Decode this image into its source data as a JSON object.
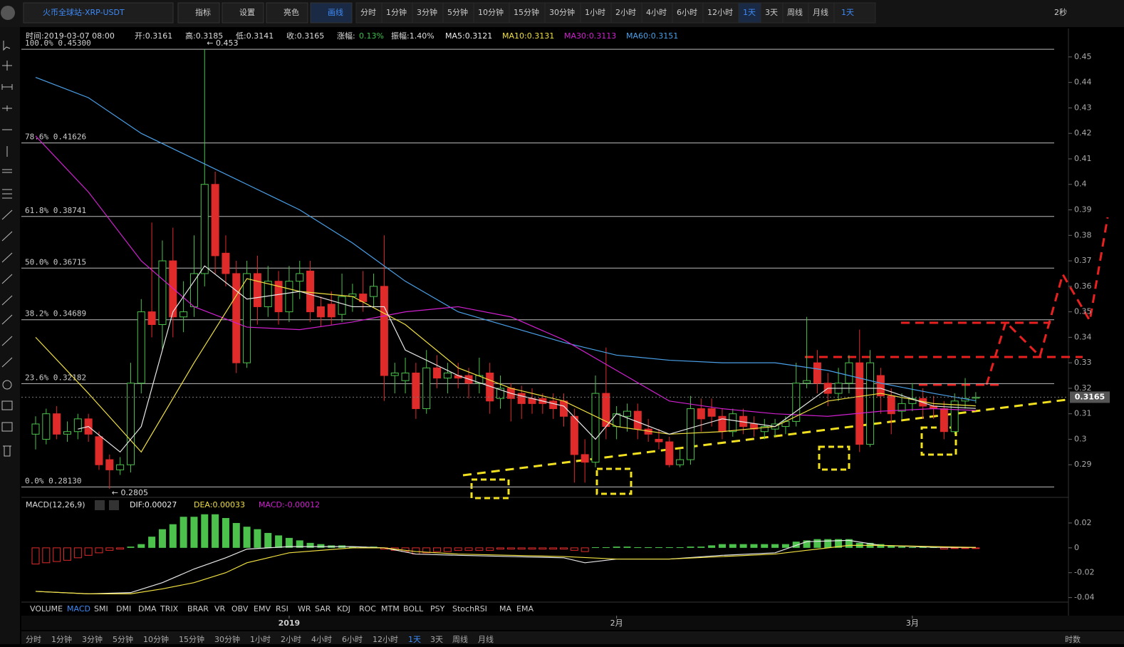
{
  "toolbar": {
    "symbol": "火币全球站-XRP-USDT",
    "buttons": [
      "指标",
      "设置",
      "亮色",
      "画线"
    ],
    "periods": [
      "分时",
      "1分钟",
      "3分钟",
      "5分钟",
      "10分钟",
      "15分钟",
      "30分钟",
      "1小时",
      "2小时",
      "4小时",
      "6小时",
      "12小时",
      "1天",
      "3天",
      "周线",
      "月线"
    ],
    "active_period": "1天",
    "dropdown": "1天",
    "refresh": "2秒"
  },
  "info_bar": [
    {
      "text": "时间:2019-03-07 08:00",
      "color": "#dddddd"
    },
    {
      "text": "开:0.3161",
      "color": "#dddddd"
    },
    {
      "text": "高:0.3185",
      "color": "#dddddd"
    },
    {
      "text": "低:0.3141",
      "color": "#dddddd"
    },
    {
      "text": "收:0.3165",
      "color": "#dddddd"
    },
    {
      "text": "涨幅:",
      "color": "#dddddd"
    },
    {
      "text": "0.13%",
      "color": "#3cc14a"
    },
    {
      "text": "振幅:1.40%",
      "color": "#dddddd"
    },
    {
      "text": "MA5:0.3121",
      "color": "#eeeeee"
    },
    {
      "text": "MA10:0.3131",
      "color": "#f0e040"
    },
    {
      "text": "MA30:0.3113",
      "color": "#d020d0"
    },
    {
      "text": "MA60:0.3151",
      "color": "#4aa0e8"
    }
  ],
  "chart_data": {
    "type": "candlestick",
    "categories": [
      null,
      null,
      null,
      null,
      null,
      null,
      null,
      null,
      null,
      null,
      null,
      null,
      null,
      null,
      null,
      null,
      null,
      null,
      null,
      null,
      null,
      null,
      null,
      null,
      "2019",
      null,
      null,
      null,
      null,
      null,
      null,
      null,
      null,
      null,
      null,
      null,
      null,
      null,
      null,
      null,
      null,
      null,
      null,
      null,
      null,
      null,
      null,
      null,
      null,
      null,
      null,
      null,
      null,
      null,
      null,
      "2月",
      null,
      null,
      null,
      null,
      null,
      null,
      null,
      null,
      null,
      null,
      null,
      null,
      null,
      null,
      null,
      null,
      null,
      null,
      null,
      null,
      null,
      null,
      null,
      null,
      null,
      null,
      null,
      "3月",
      null,
      null,
      null,
      null,
      null,
      null
    ],
    "candles": [
      [
        0.302,
        0.309,
        0.296,
        0.306
      ],
      [
        0.3,
        0.312,
        0.298,
        0.31
      ],
      [
        0.31,
        0.313,
        0.3,
        0.302
      ],
      [
        0.302,
        0.307,
        0.299,
        0.303
      ],
      [
        0.303,
        0.31,
        0.3,
        0.308
      ],
      [
        0.308,
        0.31,
        0.299,
        0.302
      ],
      [
        0.301,
        0.303,
        0.288,
        0.29
      ],
      [
        0.292,
        0.294,
        0.2805,
        0.288
      ],
      [
        0.288,
        0.293,
        0.286,
        0.29
      ],
      [
        0.29,
        0.33,
        0.287,
        0.322
      ],
      [
        0.322,
        0.355,
        0.318,
        0.35
      ],
      [
        0.35,
        0.385,
        0.34,
        0.345
      ],
      [
        0.345,
        0.378,
        0.335,
        0.37
      ],
      [
        0.37,
        0.383,
        0.34,
        0.348
      ],
      [
        0.348,
        0.362,
        0.342,
        0.35
      ],
      [
        0.352,
        0.38,
        0.348,
        0.365
      ],
      [
        0.365,
        0.453,
        0.36,
        0.4
      ],
      [
        0.4,
        0.405,
        0.365,
        0.372
      ],
      [
        0.373,
        0.38,
        0.36,
        0.365
      ],
      [
        0.365,
        0.37,
        0.326,
        0.33
      ],
      [
        0.33,
        0.37,
        0.328,
        0.365
      ],
      [
        0.365,
        0.372,
        0.345,
        0.352
      ],
      [
        0.352,
        0.368,
        0.348,
        0.362
      ],
      [
        0.362,
        0.366,
        0.345,
        0.35
      ],
      [
        0.35,
        0.368,
        0.346,
        0.362
      ],
      [
        0.362,
        0.37,
        0.355,
        0.365
      ],
      [
        0.366,
        0.37,
        0.346,
        0.35
      ],
      [
        0.352,
        0.356,
        0.344,
        0.348
      ],
      [
        0.353,
        0.358,
        0.345,
        0.348
      ],
      [
        0.349,
        0.365,
        0.346,
        0.356
      ],
      [
        0.356,
        0.361,
        0.35,
        0.357
      ],
      [
        0.357,
        0.366,
        0.35,
        0.354
      ],
      [
        0.356,
        0.365,
        0.352,
        0.36
      ],
      [
        0.36,
        0.38,
        0.315,
        0.325
      ],
      [
        0.325,
        0.33,
        0.318,
        0.326
      ],
      [
        0.323,
        0.332,
        0.318,
        0.326
      ],
      [
        0.326,
        0.33,
        0.308,
        0.312
      ],
      [
        0.312,
        0.335,
        0.31,
        0.328
      ],
      [
        0.328,
        0.333,
        0.32,
        0.324
      ],
      [
        0.324,
        0.33,
        0.318,
        0.326
      ],
      [
        0.325,
        0.33,
        0.32,
        0.324
      ],
      [
        0.325,
        0.328,
        0.316,
        0.322
      ],
      [
        0.322,
        0.332,
        0.318,
        0.325
      ],
      [
        0.326,
        0.33,
        0.31,
        0.315
      ],
      [
        0.316,
        0.325,
        0.312,
        0.32
      ],
      [
        0.32,
        0.322,
        0.307,
        0.316
      ],
      [
        0.318,
        0.321,
        0.308,
        0.314
      ],
      [
        0.316,
        0.32,
        0.31,
        0.314
      ],
      [
        0.316,
        0.318,
        0.31,
        0.314
      ],
      [
        0.315,
        0.318,
        0.308,
        0.312
      ],
      [
        0.315,
        0.318,
        0.305,
        0.309
      ],
      [
        0.309,
        0.312,
        0.283,
        0.294
      ],
      [
        0.294,
        0.3,
        0.283,
        0.291
      ],
      [
        0.291,
        0.325,
        0.289,
        0.318
      ],
      [
        0.318,
        0.336,
        0.3,
        0.305
      ],
      [
        0.305,
        0.313,
        0.3,
        0.31
      ],
      [
        0.309,
        0.314,
        0.303,
        0.311
      ],
      [
        0.311,
        0.314,
        0.3,
        0.304
      ],
      [
        0.304,
        0.308,
        0.299,
        0.302
      ],
      [
        0.3,
        0.304,
        0.296,
        0.299
      ],
      [
        0.299,
        0.301,
        0.289,
        0.29
      ],
      [
        0.29,
        0.296,
        0.289,
        0.292
      ],
      [
        0.292,
        0.317,
        0.29,
        0.312
      ],
      [
        0.312,
        0.316,
        0.303,
        0.308
      ],
      [
        0.312,
        0.316,
        0.305,
        0.309
      ],
      [
        0.309,
        0.312,
        0.3,
        0.303
      ],
      [
        0.303,
        0.312,
        0.301,
        0.31
      ],
      [
        0.309,
        0.312,
        0.302,
        0.305
      ],
      [
        0.306,
        0.309,
        0.301,
        0.304
      ],
      [
        0.303,
        0.308,
        0.3,
        0.305
      ],
      [
        0.304,
        0.308,
        0.301,
        0.306
      ],
      [
        0.305,
        0.309,
        0.302,
        0.307
      ],
      [
        0.307,
        0.33,
        0.305,
        0.322
      ],
      [
        0.322,
        0.348,
        0.32,
        0.323
      ],
      [
        0.33,
        0.335,
        0.318,
        0.322
      ],
      [
        0.322,
        0.326,
        0.313,
        0.318
      ],
      [
        0.318,
        0.328,
        0.315,
        0.322
      ],
      [
        0.322,
        0.333,
        0.318,
        0.33
      ],
      [
        0.33,
        0.343,
        0.295,
        0.298
      ],
      [
        0.298,
        0.335,
        0.297,
        0.33
      ],
      [
        0.325,
        0.328,
        0.31,
        0.317
      ],
      [
        0.317,
        0.32,
        0.302,
        0.31
      ],
      [
        0.311,
        0.318,
        0.308,
        0.314
      ],
      [
        0.314,
        0.322,
        0.311,
        0.316
      ],
      [
        0.316,
        0.32,
        0.308,
        0.313
      ],
      [
        0.313,
        0.317,
        0.308,
        0.312
      ],
      [
        0.312,
        0.315,
        0.3,
        0.303
      ],
      [
        0.303,
        0.318,
        0.302,
        0.315
      ],
      [
        0.315,
        0.324,
        0.312,
        0.316
      ],
      [
        0.3161,
        0.3185,
        0.3141,
        0.3165
      ]
    ],
    "up_color": "#4cc24c",
    "down_color": "#e02b2b",
    "ma_lines": [
      {
        "name": "MA60",
        "color": "#4aa0e8",
        "x": [
          0,
          5,
          10,
          15,
          20,
          25,
          30,
          35,
          40,
          45,
          50,
          55,
          60,
          65,
          70,
          75,
          80,
          85,
          89
        ],
        "values": [
          0.442,
          0.434,
          0.42,
          0.41,
          0.4,
          0.39,
          0.377,
          0.362,
          0.35,
          0.344,
          0.338,
          0.333,
          0.331,
          0.33,
          0.33,
          0.327,
          0.322,
          0.318,
          0.3151
        ]
      },
      {
        "name": "MA30",
        "color": "#d020d0",
        "x": [
          0,
          5,
          10,
          15,
          20,
          25,
          30,
          35,
          40,
          45,
          50,
          55,
          60,
          65,
          70,
          75,
          80,
          85,
          89
        ],
        "values": [
          0.419,
          0.397,
          0.37,
          0.352,
          0.344,
          0.343,
          0.346,
          0.35,
          0.352,
          0.348,
          0.339,
          0.327,
          0.315,
          0.312,
          0.31,
          0.309,
          0.311,
          0.312,
          0.3113
        ]
      },
      {
        "name": "MA10",
        "color": "#f0e040",
        "x": [
          0,
          5,
          10,
          15,
          20,
          25,
          30,
          35,
          40,
          45,
          50,
          55,
          60,
          65,
          70,
          75,
          80,
          85,
          89
        ],
        "values": [
          0.34,
          0.318,
          0.295,
          0.33,
          0.363,
          0.358,
          0.356,
          0.345,
          0.328,
          0.32,
          0.315,
          0.305,
          0.302,
          0.303,
          0.305,
          0.315,
          0.318,
          0.314,
          0.3131
        ]
      },
      {
        "name": "MA5",
        "color": "#e8e8e8",
        "x": [
          4,
          5,
          8,
          10,
          13,
          16,
          20,
          25,
          30,
          33,
          35,
          40,
          45,
          50,
          53,
          55,
          60,
          65,
          70,
          75,
          80,
          85,
          89
        ],
        "values": [
          0.304,
          0.305,
          0.295,
          0.305,
          0.35,
          0.368,
          0.355,
          0.358,
          0.352,
          0.352,
          0.335,
          0.325,
          0.318,
          0.313,
          0.3,
          0.31,
          0.302,
          0.308,
          0.305,
          0.32,
          0.32,
          0.313,
          0.3121
        ]
      }
    ],
    "ylim": [
      0.28,
      0.455
    ],
    "yticks": [
      0.45,
      0.44,
      0.43,
      0.42,
      0.41,
      0.4,
      0.39,
      0.38,
      0.37,
      0.36,
      0.35,
      0.34,
      0.33,
      0.32,
      0.31,
      0.3,
      0.29
    ],
    "fib_levels": [
      {
        "value": 0.453,
        "label": "100.0% 0.45300"
      },
      {
        "value": 0.41626,
        "label": "78.6% 0.41626"
      },
      {
        "value": 0.38741,
        "label": "61.8% 0.38741"
      },
      {
        "value": 0.36715,
        "label": "50.0% 0.36715"
      },
      {
        "value": 0.34689,
        "label": "38.2% 0.34689"
      },
      {
        "value": 0.32182,
        "label": "23.6% 0.32182"
      },
      {
        "value": 0.2813,
        "label": "0.0% 0.28130"
      }
    ],
    "annotations": [
      {
        "index": 16,
        "value": 0.453,
        "label": "← 0.453"
      },
      {
        "index": 7,
        "value": 0.2805,
        "label": "← 0.2805"
      }
    ],
    "macd": {
      "title": "MACD(12,26,9)",
      "dif_label": "DIF:0.00027",
      "dea_label": "DEA:0.00033",
      "macd_label": "MACD:-0.00012",
      "ylim": [
        -0.0425,
        0.028
      ],
      "yticks": [
        0.02,
        0,
        -0.02,
        -0.04
      ],
      "histogram": [
        -0.013,
        -0.012,
        -0.011,
        -0.01,
        -0.008,
        -0.006,
        -0.004,
        -0.002,
        -0.001,
        0.001,
        0.003,
        0.009,
        0.015,
        0.019,
        0.025,
        0.025,
        0.027,
        0.027,
        0.024,
        0.02,
        0.017,
        0.015,
        0.012,
        0.01,
        0.008,
        0.006,
        0.004,
        0.003,
        0.002,
        0.002,
        0.001,
        0.001,
        0.001,
        -0.001,
        -0.002,
        -0.003,
        -0.005,
        -0.004,
        -0.003,
        -0.003,
        -0.002,
        -0.002,
        -0.002,
        -0.002,
        -0.001,
        -0.001,
        -0.001,
        -0.001,
        -0.001,
        -0.001,
        -0.001,
        -0.002,
        -0.003,
        0.0005,
        0.0005,
        0.001,
        0.001,
        0.0005,
        0.0005,
        0.0005,
        0.0005,
        0.0005,
        0.001,
        0.001,
        0.002,
        0.003,
        0.003,
        0.003,
        0.003,
        0.003,
        0.003,
        0.003,
        0.005,
        0.006,
        0.007,
        0.007,
        0.007,
        0.007,
        0.004,
        0.004,
        0.003,
        0.002,
        0.001,
        0.0005,
        0.0005,
        0.0005,
        -0.001,
        -0.0005,
        -0.0005,
        -0.00012
      ],
      "dif": {
        "color": "#e8e8e8",
        "x": [
          0,
          5,
          9,
          12,
          15,
          18,
          20,
          24,
          30,
          33,
          36,
          40,
          45,
          50,
          52,
          55,
          60,
          65,
          70,
          73,
          77,
          80,
          85,
          89
        ],
        "values": [
          -0.035,
          -0.037,
          -0.036,
          -0.028,
          -0.017,
          -0.008,
          -0.001,
          0.001,
          0.001,
          0,
          -0.005,
          -0.006,
          -0.007,
          -0.008,
          -0.012,
          -0.009,
          -0.009,
          -0.006,
          -0.004,
          0.005,
          0.006,
          0.002,
          0.0005,
          0.00027
        ]
      },
      "dea": {
        "color": "#f0e040",
        "x": [
          0,
          5,
          9,
          12,
          15,
          18,
          20,
          24,
          30,
          33,
          36,
          40,
          45,
          50,
          55,
          60,
          65,
          70,
          73,
          77,
          80,
          85,
          89
        ],
        "values": [
          -0.035,
          -0.037,
          -0.037,
          -0.033,
          -0.028,
          -0.02,
          -0.012,
          -0.004,
          0,
          0,
          -0.003,
          -0.005,
          -0.006,
          -0.007,
          -0.009,
          -0.009,
          -0.007,
          -0.005,
          -0.002,
          0.002,
          0.002,
          0.001,
          0.00033
        ]
      }
    },
    "indicator_tabs": [
      "VOLUME",
      "MACD",
      "SMI",
      "DMI",
      "DMA",
      "TRIX",
      "BRAR",
      "VR",
      "OBV",
      "EMV",
      "RSI",
      "WR",
      "SAR",
      "KDJ",
      "ROC",
      "MTM",
      "BOLL",
      "PSY",
      "StochRSI",
      "MA",
      "EMA"
    ],
    "active_indicator": "MACD"
  },
  "footer": {
    "right": "时数"
  }
}
